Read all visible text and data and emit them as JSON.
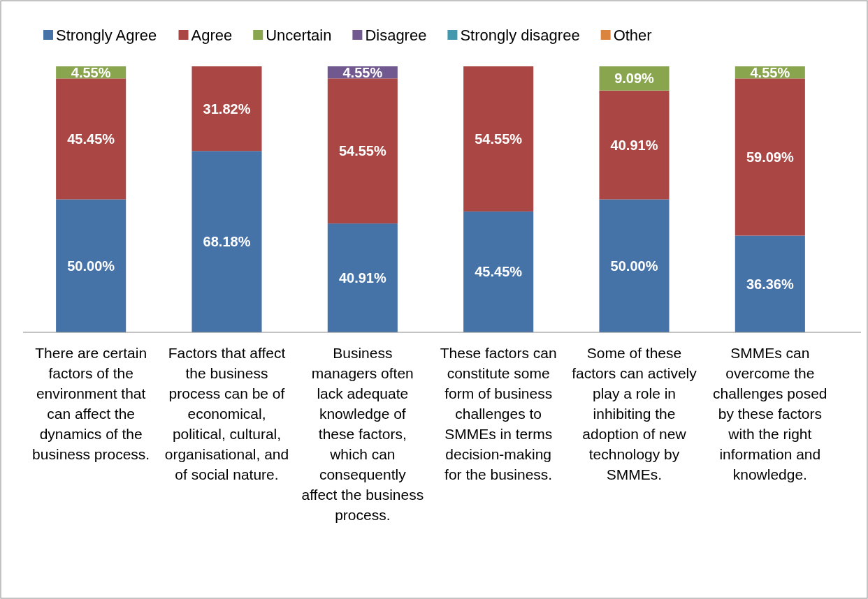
{
  "chart_data": {
    "type": "bar",
    "stacked": true,
    "legend": "top",
    "grid": false,
    "categories": [
      "There are certain factors of the environment that can affect the dynamics of the business process.",
      "Factors that affect the business process can be of economical, political, cultural, organisational, and of social nature.",
      "Business managers often lack adequate knowledge of these factors, which can consequently affect the business process.",
      "These factors can constitute some form of business challenges to SMMEs in terms decision-making for the business.",
      "Some of these factors can actively play a role in inhibiting the adoption of new technology by SMMEs.",
      "SMMEs can overcome the challenges posed by these factors with the right information and knowledge."
    ],
    "series": [
      {
        "name": "Strongly Agree",
        "color": "#4572a7",
        "values": [
          50.0,
          68.18,
          40.91,
          45.45,
          50.0,
          36.36
        ],
        "value_labels": [
          "50.00%",
          "68.18%",
          "40.91%",
          "45.45%",
          "50.00%",
          "36.36%"
        ]
      },
      {
        "name": "Agree",
        "color": "#aa4643",
        "values": [
          45.45,
          31.82,
          54.55,
          54.55,
          40.91,
          59.09
        ],
        "value_labels": [
          "45.45%",
          "31.82%",
          "54.55%",
          "54.55%",
          "40.91%",
          "59.09%"
        ]
      },
      {
        "name": "Uncertain",
        "color": "#89a54e",
        "values": [
          4.55,
          null,
          null,
          null,
          9.09,
          4.55
        ],
        "value_labels": [
          "4.55%",
          null,
          null,
          null,
          "9.09%",
          "4.55%"
        ]
      },
      {
        "name": "Disagree",
        "color": "#71588f",
        "values": [
          null,
          null,
          4.55,
          null,
          null,
          null
        ],
        "value_labels": [
          null,
          null,
          "4.55%",
          null,
          null,
          null
        ]
      },
      {
        "name": "Strongly disagree",
        "color": "#4198af",
        "values": [
          null,
          null,
          null,
          null,
          null,
          null
        ]
      },
      {
        "name": "Other",
        "color": "#db843d",
        "values": [
          null,
          null,
          null,
          null,
          null,
          null
        ]
      }
    ]
  }
}
